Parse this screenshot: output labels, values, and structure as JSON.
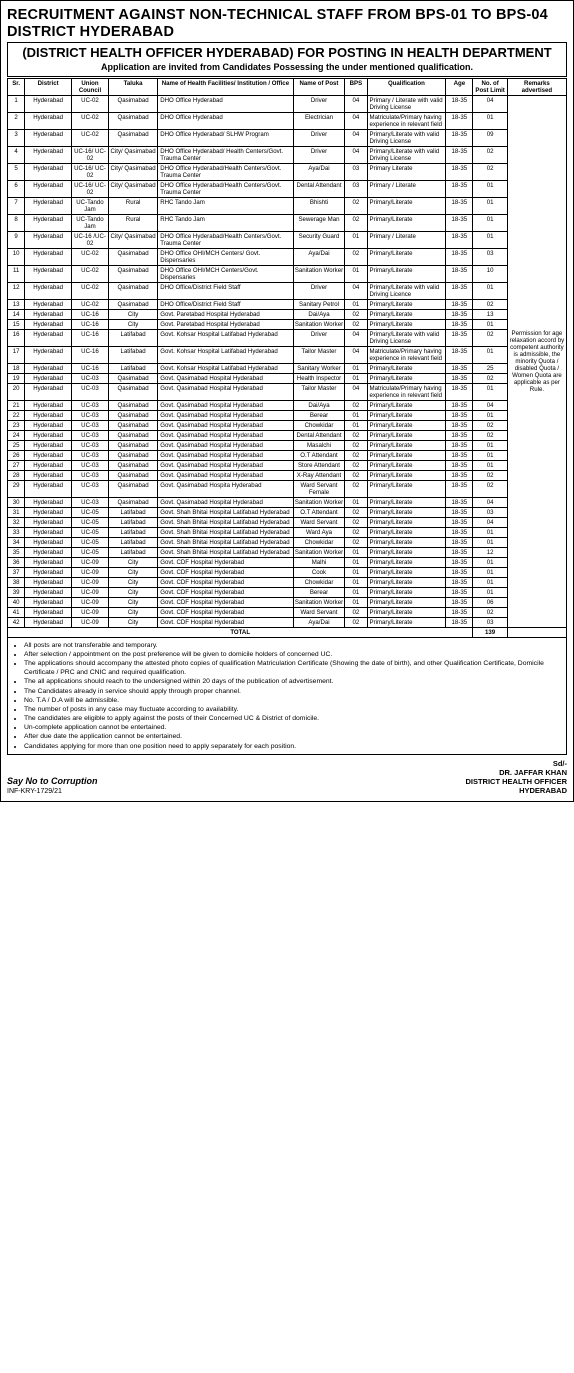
{
  "header": {
    "title1": "RECRUITMENT AGAINST NON-TECHNICAL STAFF FROM BPS-01 TO BPS-04 DISTRICT HYDERABAD",
    "title2": "(DISTRICT HEALTH OFFICER HYDERABAD) FOR POSTING IN HEALTH DEPARTMENT",
    "title3": "Application are invited from Candidates Possessing the under mentioned qualification."
  },
  "columns": [
    "Sr.",
    "District",
    "Union Council",
    "Taluka",
    "Name of Health Facilities/ Institution / Office",
    "Name of Post",
    "BPS",
    "Qualification",
    "Age",
    "No. of Post Limit",
    "Remarks advertised"
  ],
  "colwidths": [
    "14px",
    "38px",
    "30px",
    "40px",
    "110px",
    "42px",
    "18px",
    "64px",
    "22px",
    "28px",
    "48px"
  ],
  "remarks": "Permission for age relaxation accord by competent authority is admissible, the minority Quota / disabled Quota / Women Quota are applicable as per Rule.",
  "rows": [
    [
      "1",
      "Hyderabad",
      "UC-02",
      "Qasimabad",
      "DHO Office Hyderabad",
      "Driver",
      "04",
      "Primary / Literate with valid Driving License",
      "18-35",
      "04"
    ],
    [
      "2",
      "Hyderabad",
      "UC-02",
      "Qasimabad",
      "DHO Office Hyderabad",
      "Electrician",
      "04",
      "Matriculate/Primary having experience in relevant field",
      "18-35",
      "01"
    ],
    [
      "3",
      "Hyderabad",
      "UC-02",
      "Qasimabad",
      "DHO Office Hyderabad/ SLHW Program",
      "Driver",
      "04",
      "Primary/Literate with valid Driving License",
      "18-35",
      "09"
    ],
    [
      "4",
      "Hyderabad",
      "UC-16/ UC-02",
      "City/ Qasimabad",
      "DHO Office Hyderabad/ Health Centers/Govt. Trauma Center",
      "Driver",
      "04",
      "Primary/Literate with valid Driving License",
      "18-35",
      "02"
    ],
    [
      "5",
      "Hyderabad",
      "UC-16/ UC-02",
      "City/ Qasimabad",
      "DHO Office Hyderabad/Health Centers/Govt. Trauma Center",
      "Aya/Dai",
      "03",
      "Primary Literate",
      "18-35",
      "02"
    ],
    [
      "6",
      "Hyderabad",
      "UC-16/ UC-02",
      "City/ Qasimabad",
      "DHO Office Hyderabad/Health Centers/Govt. Trauma Center",
      "Dental Attendant",
      "03",
      "Primary / Literate",
      "18-35",
      "01"
    ],
    [
      "7",
      "Hyderabad",
      "UC-Tando Jam",
      "Rural",
      "RHC Tando Jam",
      "Bhishti",
      "02",
      "Primary/Literate",
      "18-35",
      "01"
    ],
    [
      "8",
      "Hyderabad",
      "UC-Tando Jam",
      "Rural",
      "RHC Tando Jam",
      "Sewerage Man",
      "02",
      "Primary/Literate",
      "18-35",
      "01"
    ],
    [
      "9",
      "Hyderabad",
      "UC-16 /UC-02",
      "City/ Qasimabad",
      "DHO Office Hyderabad/Health Centers/Govt. Trauma Center",
      "Security Guard",
      "01",
      "Primary / Literate",
      "18-35",
      "01"
    ],
    [
      "10",
      "Hyderabad",
      "UC-02",
      "Qasimabad",
      "DHO Office OHI/MCH Centers/ Govt. Dispensaries",
      "Aya/Dai",
      "02",
      "Primary/Literate",
      "18-35",
      "03"
    ],
    [
      "11",
      "Hyderabad",
      "UC-02",
      "Qasimabad",
      "DHO Office OHI/MCH Centers/Govt. Dispensaries",
      "Sanitation Worker",
      "01",
      "Primary/Literate",
      "18-35",
      "10"
    ],
    [
      "12",
      "Hyderabad",
      "UC-02",
      "Qasimabad",
      "DHO Office/District Field Staff",
      "Driver",
      "04",
      "Primary/Literate with valid Driving Licence",
      "18-35",
      "01"
    ],
    [
      "13",
      "Hyderabad",
      "UC-02",
      "Qasimabad",
      "DHO Office/District Field Staff",
      "Sanitary Petrol",
      "01",
      "Primary/Literate",
      "18-35",
      "02"
    ],
    [
      "14",
      "Hyderabad",
      "UC-16",
      "City",
      "Govt. Paretabad Hospital Hyderabad",
      "Dai/Aya",
      "02",
      "Primary/Literate",
      "18-35",
      "13"
    ],
    [
      "15",
      "Hyderabad",
      "UC-16",
      "City",
      "Govt. Paretabad Hospital Hyderabad",
      "Sanitation Worker",
      "02",
      "Primary/Literate",
      "18-35",
      "01"
    ],
    [
      "16",
      "Hyderabad",
      "UC-16",
      "Latifabad",
      "Govt. Kohsar Hospital Latifabad Hyderabad",
      "Driver",
      "04",
      "Primary/Literate with valid Driving License",
      "18-35",
      "02"
    ],
    [
      "17",
      "Hyderabad",
      "UC-16",
      "Latifabad",
      "Govt. Kohsar Hospital Latifabad Hyderabad",
      "Tailor Master",
      "04",
      "Matriculate/Primary having experience in relevant field",
      "18-35",
      "01"
    ],
    [
      "18",
      "Hyderabad",
      "UC-16",
      "Latifabad",
      "Govt. Kohsar Hospital Latifabad Hyderabad",
      "Sanitary Worker",
      "01",
      "Primary/Literate",
      "18-35",
      "25"
    ],
    [
      "19",
      "Hyderabad",
      "UC-03",
      "Qasimabad",
      "Govt. Qasimabad Hospital Hyderabad",
      "Health Inspector",
      "01",
      "Primary/Literate",
      "18-35",
      "02"
    ],
    [
      "20",
      "Hyderabad",
      "UC-03",
      "Qasimabad",
      "Govt. Qasimabad Hospital Hyderabad",
      "Tailor Master",
      "04",
      "Matriculate/Primary having experience in relevant field",
      "18-35",
      "01"
    ],
    [
      "21",
      "Hyderabad",
      "UC-03",
      "Qasimabad",
      "Govt. Qasimabad Hospital Hyderabad",
      "Dai/Aya",
      "02",
      "Primary/Literate",
      "18-35",
      "04"
    ],
    [
      "22",
      "Hyderabad",
      "UC-03",
      "Qasimabad",
      "Govt. Qasimabad Hospital Hyderabad",
      "Berear",
      "01",
      "Primary/Literate",
      "18-35",
      "01"
    ],
    [
      "23",
      "Hyderabad",
      "UC-03",
      "Qasimabad",
      "Govt. Qasimabad Hospital Hyderabad",
      "Chowkidar",
      "01",
      "Primary/Literate",
      "18-35",
      "02"
    ],
    [
      "24",
      "Hyderabad",
      "UC-03",
      "Qasimabad",
      "Govt. Qasimabad Hospital Hyderabad",
      "Dental Attendant",
      "02",
      "Primary/Literate",
      "18-35",
      "02"
    ],
    [
      "25",
      "Hyderabad",
      "UC-03",
      "Qasimabad",
      "Govt. Qasimabad Hospital Hyderabad",
      "Masalchi",
      "02",
      "Primary/Literate",
      "18-35",
      "01"
    ],
    [
      "26",
      "Hyderabad",
      "UC-03",
      "Qasimabad",
      "Govt. Qasimabad Hospital Hyderabad",
      "O.T Attendant",
      "02",
      "Primary/Literate",
      "18-35",
      "01"
    ],
    [
      "27",
      "Hyderabad",
      "UC-03",
      "Qasimabad",
      "Govt. Qasimabad Hospital Hyderabad",
      "Store Attendant",
      "02",
      "Primary/Literate",
      "18-35",
      "01"
    ],
    [
      "28",
      "Hyderabad",
      "UC-03",
      "Qasimabad",
      "Govt. Qasimabad Hospital Hyderabad",
      "X-Ray Attendant",
      "02",
      "Primary/Literate",
      "18-35",
      "02"
    ],
    [
      "29",
      "Hyderabad",
      "UC-03",
      "Qasimabad",
      "Govt. Qasimabad Hospita Hyderabad",
      "Ward Servant Female",
      "02",
      "Primary/Literate",
      "18-35",
      "02"
    ],
    [
      "30",
      "Hyderabad",
      "UC-03",
      "Qasimabad",
      "Govt. Qasimabad Hospital Hyderabad",
      "Sanitation Worker",
      "01",
      "Primary/Literate",
      "18-35",
      "04"
    ],
    [
      "31",
      "Hyderabad",
      "UC-05",
      "Latifabad",
      "Govt. Shah Bhitai Hospital Latifabad Hyderabad",
      "O.T Attendant",
      "02",
      "Primary/Literate",
      "18-35",
      "03"
    ],
    [
      "32",
      "Hyderabad",
      "UC-05",
      "Latifabad",
      "Govt. Shah Bhitai Hospital Latifabad Hyderabad",
      "Ward Servant",
      "02",
      "Primary/Literate",
      "18-35",
      "04"
    ],
    [
      "33",
      "Hyderabad",
      "UC-05",
      "Latifabad",
      "Govt. Shah Bhitai Hospital Latifabad Hyderabad",
      "Ward Aya",
      "02",
      "Primary/Literate",
      "18-35",
      "01"
    ],
    [
      "34",
      "Hyderabad",
      "UC-05",
      "Latifabad",
      "Govt. Shah Bhitai Hospital Latifabad Hyderabad",
      "Chowkidar",
      "02",
      "Primary/Literate",
      "18-35",
      "01"
    ],
    [
      "35",
      "Hyderabad",
      "UC-05",
      "Latifabad",
      "Govt. Shah Bhitai Hospital Latifabad Hyderabad",
      "Sanitation Worker",
      "01",
      "Primary/Literate",
      "18-35",
      "12"
    ],
    [
      "36",
      "Hyderabad",
      "UC-09",
      "City",
      "Govt. CDF Hospital Hyderabad",
      "Malhi",
      "01",
      "Primary/Literate",
      "18-35",
      "01"
    ],
    [
      "37",
      "Hyderabad",
      "UC-09",
      "City",
      "Govt. CDF Hospital Hyderabad",
      "Cook",
      "01",
      "Primary/Literate",
      "18-35",
      "01"
    ],
    [
      "38",
      "Hyderabad",
      "UC-09",
      "City",
      "Govt. CDF Hospital Hyderabad",
      "Chowkidar",
      "01",
      "Primary/Literate",
      "18-35",
      "01"
    ],
    [
      "39",
      "Hyderabad",
      "UC-09",
      "City",
      "Govt. CDF Hospital Hyderabad",
      "Berear",
      "01",
      "Primary/Literate",
      "18-35",
      "01"
    ],
    [
      "40",
      "Hyderabad",
      "UC-09",
      "City",
      "Govt. CDF Hospital Hyderabad",
      "Sanitation Worker",
      "01",
      "Primary/Literate",
      "18-35",
      "06"
    ],
    [
      "41",
      "Hyderabad",
      "UC-09",
      "City",
      "Govt. CDF Hospital Hyderabad",
      "Ward Servant",
      "02",
      "Primary/Literate",
      "18-35",
      "02"
    ],
    [
      "42",
      "Hyderabad",
      "UC-09",
      "City",
      "Govt. CDF Hospital Hyderabad",
      "Aya/Dai",
      "02",
      "Primary/Literate",
      "18-35",
      "03"
    ]
  ],
  "total": {
    "label": "TOTAL",
    "value": "139"
  },
  "notes": [
    "All posts are not transferable and temporary.",
    "After selection / appointment on the post preference will be given to domicile holders of concerned UC.",
    "The applications should accompany the attested photo copies of qualification Matriculation Certificate (Showing the date of birth), and other Qualification Certificate, Domicile Certificate / PRC and CNIC and required qualification.",
    "The all applications should reach to the undersigned within 20 days of the publication of advertisement.",
    "The Candidates already in service should apply through proper channel.",
    "No. T.A / D.A will be admissible.",
    "The number of posts in any case may fluctuate according to availability.",
    "The candidates are eligible to apply against the posts of their Concerned UC & District of domicile.",
    "Un-complete application cannot be entertained.",
    "After due date the application cannot be entertained.",
    "Candidates applying for more than one position need to apply separately for each position."
  ],
  "footer": {
    "say": "Say No to Corruption",
    "inf": "INF-KRY-1729/21",
    "sd": "Sd/-",
    "sig_name": "DR. JAFFAR KHAN",
    "sig_title": "DISTRICT HEALTH OFFICER",
    "sig_place": "HYDERABAD"
  }
}
